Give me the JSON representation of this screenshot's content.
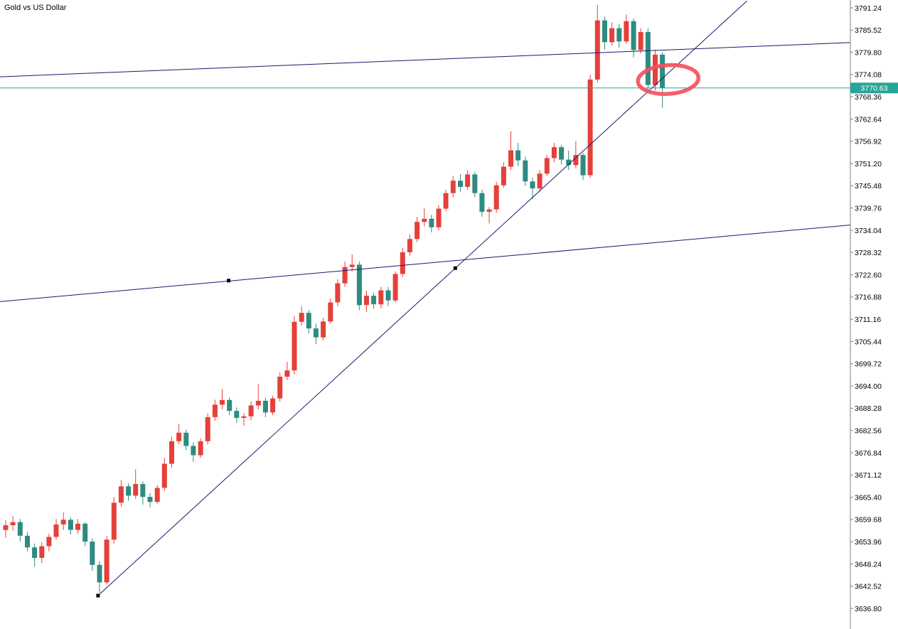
{
  "header": {
    "title": "Gold vs US Dollar"
  },
  "chart_data": {
    "type": "candlestick",
    "title": "Gold vs US Dollar",
    "legend_position": "none",
    "grid": false,
    "y_axis": {
      "max": 3791.24,
      "min": 3636.8,
      "step": 5.72,
      "tick_labels": [
        "3791.24",
        "3785.52",
        "3779.80",
        "3774.08",
        "3768.36",
        "3762.64",
        "3756.92",
        "3751.20",
        "3745.48",
        "3739.76",
        "3734.04",
        "3728.32",
        "3722.60",
        "3716.88",
        "3711.16",
        "3705.44",
        "3699.72",
        "3694.00",
        "3688.28",
        "3682.56",
        "3676.84",
        "3671.12",
        "3665.40",
        "3659.68",
        "3653.96",
        "3648.24",
        "3642.52",
        "3636.80"
      ]
    },
    "current_price": "3770.63",
    "colors": {
      "bull": "#e5403a",
      "bear": "#2f8b80",
      "trendline": "#191970",
      "handle": "#000000",
      "current_price": "#26a69a",
      "current_price_text": "#ffffff",
      "annotation": "#f4515c",
      "axis_line": "#808080",
      "text": "#000000",
      "background": "#ffffff"
    },
    "candles": [
      [
        3657.0,
        3659.5,
        3655.0,
        3658.2
      ],
      [
        3658.2,
        3660.5,
        3656.8,
        3659.0
      ],
      [
        3659.0,
        3659.8,
        3654.0,
        3655.5
      ],
      [
        3655.5,
        3656.5,
        3651.5,
        3652.5
      ],
      [
        3652.5,
        3653.5,
        3647.5,
        3649.8
      ],
      [
        3649.8,
        3653.8,
        3648.5,
        3652.8
      ],
      [
        3652.8,
        3656.0,
        3651.5,
        3655.2
      ],
      [
        3655.2,
        3659.8,
        3654.5,
        3658.4
      ],
      [
        3658.4,
        3661.5,
        3657.0,
        3659.6
      ],
      [
        3659.6,
        3660.2,
        3655.8,
        3657.0
      ],
      [
        3657.0,
        3659.8,
        3656.0,
        3658.6
      ],
      [
        3658.6,
        3659.0,
        3652.8,
        3654.0
      ],
      [
        3654.0,
        3654.8,
        3646.5,
        3648.0
      ],
      [
        3648.0,
        3649.0,
        3640.8,
        3643.5
      ],
      [
        3643.5,
        3655.5,
        3643.0,
        3654.5
      ],
      [
        3654.5,
        3665.5,
        3653.5,
        3664.0
      ],
      [
        3664.0,
        3669.8,
        3663.0,
        3668.2
      ],
      [
        3668.2,
        3669.0,
        3664.5,
        3665.8
      ],
      [
        3665.8,
        3672.6,
        3665.0,
        3668.8
      ],
      [
        3668.8,
        3669.5,
        3663.5,
        3665.5
      ],
      [
        3665.5,
        3666.5,
        3662.8,
        3664.2
      ],
      [
        3664.2,
        3668.5,
        3663.8,
        3667.8
      ],
      [
        3667.8,
        3675.5,
        3667.0,
        3674.0
      ],
      [
        3674.0,
        3681.0,
        3673.0,
        3679.8
      ],
      [
        3679.8,
        3684.3,
        3679.0,
        3682.0
      ],
      [
        3682.0,
        3682.8,
        3677.5,
        3678.6
      ],
      [
        3678.6,
        3679.5,
        3674.5,
        3676.2
      ],
      [
        3676.2,
        3680.5,
        3675.5,
        3679.8
      ],
      [
        3679.8,
        3687.0,
        3679.0,
        3686.0
      ],
      [
        3686.0,
        3690.5,
        3685.0,
        3689.2
      ],
      [
        3689.2,
        3693.2,
        3688.0,
        3690.4
      ],
      [
        3690.4,
        3691.0,
        3686.5,
        3687.6
      ],
      [
        3687.6,
        3688.5,
        3684.5,
        3685.8
      ],
      [
        3685.8,
        3687.0,
        3683.8,
        3686.2
      ],
      [
        3686.2,
        3690.0,
        3685.2,
        3689.0
      ],
      [
        3689.0,
        3694.5,
        3688.0,
        3690.2
      ],
      [
        3690.2,
        3691.0,
        3686.0,
        3687.2
      ],
      [
        3687.2,
        3691.5,
        3686.5,
        3690.8
      ],
      [
        3690.8,
        3697.5,
        3690.0,
        3696.4
      ],
      [
        3696.4,
        3700.2,
        3695.5,
        3698.0
      ],
      [
        3698.0,
        3712.0,
        3697.0,
        3710.5
      ],
      [
        3710.5,
        3714.5,
        3709.5,
        3712.8
      ],
      [
        3712.8,
        3713.5,
        3707.5,
        3708.8
      ],
      [
        3708.8,
        3710.0,
        3704.8,
        3706.5
      ],
      [
        3706.5,
        3711.5,
        3705.8,
        3710.6
      ],
      [
        3710.6,
        3716.5,
        3710.0,
        3715.5
      ],
      [
        3715.5,
        3721.5,
        3714.5,
        3720.4
      ],
      [
        3720.4,
        3726.0,
        3719.5,
        3724.6
      ],
      [
        3724.6,
        3727.8,
        3723.5,
        3725.2
      ],
      [
        3725.2,
        3726.0,
        3713.5,
        3714.8
      ],
      [
        3714.8,
        3718.5,
        3713.0,
        3717.2
      ],
      [
        3717.2,
        3718.0,
        3713.8,
        3715.0
      ],
      [
        3715.0,
        3719.5,
        3714.0,
        3718.6
      ],
      [
        3718.6,
        3719.5,
        3714.5,
        3716.0
      ],
      [
        3716.0,
        3723.5,
        3715.5,
        3722.8
      ],
      [
        3722.8,
        3729.5,
        3722.0,
        3728.4
      ],
      [
        3728.4,
        3733.0,
        3727.5,
        3731.8
      ],
      [
        3731.8,
        3737.5,
        3731.0,
        3736.2
      ],
      [
        3736.2,
        3739.8,
        3735.0,
        3737.0
      ],
      [
        3737.0,
        3738.0,
        3733.5,
        3734.8
      ],
      [
        3734.8,
        3740.5,
        3734.0,
        3739.6
      ],
      [
        3739.6,
        3744.5,
        3739.0,
        3743.6
      ],
      [
        3743.6,
        3748.0,
        3742.5,
        3746.8
      ],
      [
        3746.8,
        3748.5,
        3744.0,
        3745.2
      ],
      [
        3745.2,
        3749.5,
        3744.5,
        3748.4
      ],
      [
        3748.4,
        3749.0,
        3742.5,
        3743.6
      ],
      [
        3743.6,
        3744.5,
        3737.5,
        3738.8
      ],
      [
        3738.8,
        3740.0,
        3735.8,
        3739.4
      ],
      [
        3739.4,
        3746.5,
        3738.5,
        3745.6
      ],
      [
        3745.6,
        3751.5,
        3745.0,
        3750.4
      ],
      [
        3750.4,
        3759.5,
        3749.5,
        3754.6
      ],
      [
        3754.6,
        3756.5,
        3750.5,
        3752.0
      ],
      [
        3752.0,
        3753.0,
        3745.5,
        3746.6
      ],
      [
        3746.6,
        3747.5,
        3742.0,
        3744.8
      ],
      [
        3744.8,
        3749.5,
        3744.0,
        3748.6
      ],
      [
        3748.6,
        3753.5,
        3748.0,
        3752.6
      ],
      [
        3752.6,
        3756.5,
        3751.5,
        3755.4
      ],
      [
        3755.4,
        3756.0,
        3751.0,
        3752.2
      ],
      [
        3752.2,
        3754.5,
        3749.5,
        3750.8
      ],
      [
        3750.8,
        3757.0,
        3750.0,
        3753.4
      ],
      [
        3753.4,
        3754.0,
        3747.0,
        3748.2
      ],
      [
        3748.2,
        3774.0,
        3747.5,
        3772.8
      ],
      [
        3772.8,
        3792.0,
        3772.0,
        3788.0
      ],
      [
        3788.0,
        3789.0,
        3780.5,
        3782.4
      ],
      [
        3782.4,
        3787.5,
        3781.5,
        3786.0
      ],
      [
        3786.0,
        3787.0,
        3781.0,
        3782.6
      ],
      [
        3782.6,
        3789.5,
        3782.0,
        3787.8
      ],
      [
        3787.8,
        3788.5,
        3778.5,
        3780.4
      ],
      [
        3780.4,
        3786.0,
        3779.5,
        3785.0
      ],
      [
        3785.0,
        3786.0,
        3769.5,
        3771.4
      ],
      [
        3771.4,
        3780.5,
        3770.0,
        3779.2
      ],
      [
        3779.2,
        3779.8,
        3765.5,
        3770.6
      ]
    ],
    "trendlines": [
      {
        "name": "steep-uptrend-line",
        "p1": {
          "i": 12.8,
          "price": 3640.1
        },
        "p2": {
          "i": 102.7,
          "price": 3793.0
        },
        "handles": [
          {
            "i": 12.8,
            "price": 3640.1
          },
          {
            "i": 62.3,
            "price": 3724.3
          }
        ]
      },
      {
        "name": "upper-channel-line",
        "p1": {
          "i": -0.8,
          "price": 3773.5
        },
        "p2": {
          "i": 117.0,
          "price": 3782.3
        },
        "handles": []
      },
      {
        "name": "lower-channel-line",
        "p1": {
          "i": -0.8,
          "price": 3715.7
        },
        "p2": {
          "i": 117.0,
          "price": 3735.4
        },
        "handles": [
          {
            "i": 30.9,
            "price": 3721.1
          }
        ]
      }
    ],
    "annotation_ellipse": {
      "i": 91.8,
      "price": 3772.8,
      "rx_bars": 4.2,
      "ry_price": 3.7,
      "stroke_width": 5.5,
      "rotation_deg": -4
    }
  }
}
